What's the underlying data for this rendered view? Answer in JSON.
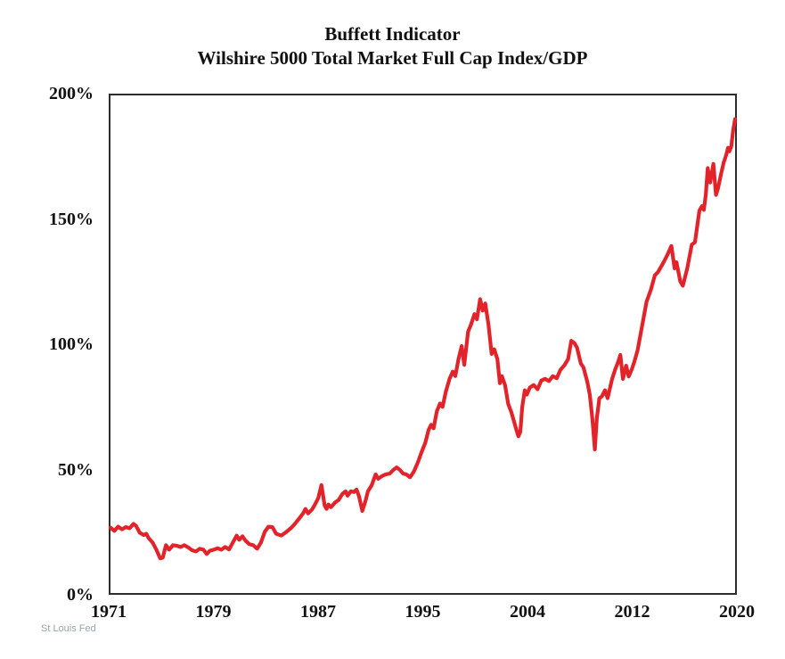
{
  "colors": {
    "line": "#e2232a",
    "axis_border": "#2d2d2d",
    "label_text": "#111111",
    "source_text": "#9aa2aa",
    "background": "#ffffff"
  },
  "chart_data": {
    "type": "line",
    "title": "Buffett Indicator",
    "subtitle": "Wilshire 5000 Total Market Full Cap Index/GDP",
    "source": "St Louis Fed",
    "grid": false,
    "legend": "none",
    "x_axis": {
      "tick_labels": [
        "1971",
        "1979",
        "1987",
        "1995",
        "2004",
        "2012",
        "2020"
      ],
      "range": [
        1971,
        2020
      ],
      "ticks_evenly_spaced": true
    },
    "y_axis": {
      "tick_labels": [
        "0%",
        "50%",
        "100%",
        "150%",
        "200%"
      ],
      "tick_values": [
        0,
        50,
        100,
        150,
        200
      ],
      "range": [
        0,
        200
      ],
      "unit": "percent"
    },
    "series": [
      {
        "name": "Wilshire 5000 Total Market Full Cap Index / GDP (%)",
        "color": "#e2232a",
        "points": [
          [
            1971.0,
            26.3
          ],
          [
            1971.3,
            25.0
          ],
          [
            1971.6,
            26.7
          ],
          [
            1971.9,
            25.6
          ],
          [
            1972.2,
            26.5
          ],
          [
            1972.5,
            26.0
          ],
          [
            1972.8,
            27.8
          ],
          [
            1973.0,
            27.0
          ],
          [
            1973.3,
            24.2
          ],
          [
            1973.6,
            23.3
          ],
          [
            1973.8,
            23.8
          ],
          [
            1974.0,
            22.0
          ],
          [
            1974.3,
            20.3
          ],
          [
            1974.6,
            17.4
          ],
          [
            1974.9,
            13.9
          ],
          [
            1975.1,
            14.2
          ],
          [
            1975.35,
            19.2
          ],
          [
            1975.6,
            17.4
          ],
          [
            1975.9,
            19.2
          ],
          [
            1976.2,
            19.0
          ],
          [
            1976.5,
            18.5
          ],
          [
            1976.8,
            19.2
          ],
          [
            1977.1,
            18.3
          ],
          [
            1977.4,
            17.2
          ],
          [
            1977.7,
            16.7
          ],
          [
            1978.0,
            17.8
          ],
          [
            1978.3,
            17.4
          ],
          [
            1978.55,
            15.7
          ],
          [
            1978.8,
            17.0
          ],
          [
            1979.1,
            17.4
          ],
          [
            1979.4,
            18.0
          ],
          [
            1979.7,
            17.4
          ],
          [
            1980.0,
            18.5
          ],
          [
            1980.3,
            17.5
          ],
          [
            1980.6,
            20.3
          ],
          [
            1980.9,
            23.1
          ],
          [
            1981.1,
            21.4
          ],
          [
            1981.35,
            22.8
          ],
          [
            1981.6,
            21.0
          ],
          [
            1981.9,
            19.6
          ],
          [
            1982.2,
            19.2
          ],
          [
            1982.5,
            17.8
          ],
          [
            1982.8,
            20.3
          ],
          [
            1983.1,
            24.6
          ],
          [
            1983.4,
            26.7
          ],
          [
            1983.7,
            26.5
          ],
          [
            1984.0,
            23.8
          ],
          [
            1984.4,
            23.1
          ],
          [
            1984.8,
            24.6
          ],
          [
            1985.2,
            26.3
          ],
          [
            1985.5,
            28.0
          ],
          [
            1985.8,
            29.9
          ],
          [
            1986.1,
            32.0
          ],
          [
            1986.3,
            33.8
          ],
          [
            1986.5,
            32.0
          ],
          [
            1986.8,
            33.5
          ],
          [
            1987.0,
            35.2
          ],
          [
            1987.3,
            38.1
          ],
          [
            1987.55,
            43.4
          ],
          [
            1987.8,
            35.2
          ],
          [
            1987.95,
            33.8
          ],
          [
            1988.1,
            35.6
          ],
          [
            1988.3,
            34.5
          ],
          [
            1988.6,
            36.3
          ],
          [
            1988.9,
            37.4
          ],
          [
            1989.2,
            39.9
          ],
          [
            1989.45,
            40.9
          ],
          [
            1989.6,
            39.1
          ],
          [
            1989.85,
            40.9
          ],
          [
            1990.1,
            40.6
          ],
          [
            1990.3,
            41.6
          ],
          [
            1990.5,
            38.8
          ],
          [
            1990.75,
            33.0
          ],
          [
            1991.0,
            37.0
          ],
          [
            1991.2,
            40.9
          ],
          [
            1991.5,
            43.4
          ],
          [
            1991.8,
            47.7
          ],
          [
            1992.0,
            45.9
          ],
          [
            1992.3,
            47.0
          ],
          [
            1992.6,
            47.7
          ],
          [
            1992.9,
            48.0
          ],
          [
            1993.2,
            49.5
          ],
          [
            1993.45,
            50.5
          ],
          [
            1993.7,
            49.5
          ],
          [
            1993.95,
            48.0
          ],
          [
            1994.2,
            47.7
          ],
          [
            1994.5,
            46.5
          ],
          [
            1994.8,
            48.8
          ],
          [
            1995.1,
            52.3
          ],
          [
            1995.4,
            56.6
          ],
          [
            1995.7,
            60.5
          ],
          [
            1995.95,
            65.5
          ],
          [
            1996.15,
            67.6
          ],
          [
            1996.35,
            66.2
          ],
          [
            1996.6,
            73.0
          ],
          [
            1996.85,
            76.2
          ],
          [
            1997.05,
            74.8
          ],
          [
            1997.3,
            80.8
          ],
          [
            1997.6,
            86.1
          ],
          [
            1997.85,
            89.0
          ],
          [
            1998.05,
            87.2
          ],
          [
            1998.3,
            94.0
          ],
          [
            1998.55,
            99.3
          ],
          [
            1998.75,
            91.7
          ],
          [
            1999.05,
            105.0
          ],
          [
            1999.3,
            108.2
          ],
          [
            1999.55,
            112.1
          ],
          [
            1999.75,
            110.0
          ],
          [
            2000.0,
            118.1
          ],
          [
            2000.2,
            113.5
          ],
          [
            2000.4,
            116.4
          ],
          [
            2000.65,
            108.0
          ],
          [
            2000.9,
            96.1
          ],
          [
            2001.1,
            98.0
          ],
          [
            2001.35,
            94.0
          ],
          [
            2001.55,
            84.3
          ],
          [
            2001.7,
            87.2
          ],
          [
            2001.95,
            83.6
          ],
          [
            2002.2,
            76.0
          ],
          [
            2002.45,
            72.6
          ],
          [
            2002.65,
            69.0
          ],
          [
            2002.85,
            65.5
          ],
          [
            2003.0,
            63.0
          ],
          [
            2003.15,
            64.8
          ],
          [
            2003.3,
            74.7
          ],
          [
            2003.5,
            81.5
          ],
          [
            2003.65,
            79.7
          ],
          [
            2003.9,
            82.6
          ],
          [
            2004.2,
            83.6
          ],
          [
            2004.5,
            81.9
          ],
          [
            2004.8,
            85.4
          ],
          [
            2005.1,
            86.1
          ],
          [
            2005.4,
            85.2
          ],
          [
            2005.7,
            87.2
          ],
          [
            2006.0,
            86.3
          ],
          [
            2006.3,
            89.7
          ],
          [
            2006.6,
            91.5
          ],
          [
            2006.9,
            94.0
          ],
          [
            2007.15,
            101.4
          ],
          [
            2007.4,
            100.4
          ],
          [
            2007.6,
            98.6
          ],
          [
            2007.9,
            92.2
          ],
          [
            2008.1,
            90.7
          ],
          [
            2008.4,
            85.0
          ],
          [
            2008.6,
            79.7
          ],
          [
            2008.8,
            70.0
          ],
          [
            2009.0,
            57.7
          ],
          [
            2009.15,
            70.1
          ],
          [
            2009.35,
            78.3
          ],
          [
            2009.55,
            79.0
          ],
          [
            2009.8,
            81.5
          ],
          [
            2010.0,
            78.3
          ],
          [
            2010.35,
            86.1
          ],
          [
            2010.6,
            90.0
          ],
          [
            2010.8,
            92.5
          ],
          [
            2011.0,
            95.7
          ],
          [
            2011.2,
            86.0
          ],
          [
            2011.45,
            91.4
          ],
          [
            2011.65,
            87.0
          ],
          [
            2011.9,
            90.0
          ],
          [
            2012.1,
            93.0
          ],
          [
            2012.35,
            97.5
          ],
          [
            2012.8,
            110.0
          ],
          [
            2013.05,
            117.0
          ],
          [
            2013.4,
            122.0
          ],
          [
            2013.7,
            127.7
          ],
          [
            2013.95,
            129.0
          ],
          [
            2014.4,
            133.0
          ],
          [
            2014.7,
            136.0
          ],
          [
            2015.0,
            139.5
          ],
          [
            2015.25,
            130.5
          ],
          [
            2015.4,
            133.0
          ],
          [
            2015.7,
            125.3
          ],
          [
            2015.9,
            123.5
          ],
          [
            2016.25,
            130.5
          ],
          [
            2016.6,
            140.0
          ],
          [
            2016.85,
            141.0
          ],
          [
            2017.2,
            153.7
          ],
          [
            2017.4,
            155.5
          ],
          [
            2017.55,
            154.0
          ],
          [
            2017.7,
            160.0
          ],
          [
            2017.85,
            170.8
          ],
          [
            2018.05,
            165.0
          ],
          [
            2018.3,
            172.5
          ],
          [
            2018.5,
            160.0
          ],
          [
            2018.65,
            162.5
          ],
          [
            2018.9,
            168.5
          ],
          [
            2019.1,
            173.0
          ],
          [
            2019.3,
            176.0
          ],
          [
            2019.45,
            179.0
          ],
          [
            2019.55,
            177.5
          ],
          [
            2019.7,
            179.5
          ],
          [
            2019.85,
            186.0
          ],
          [
            2020.0,
            190.5
          ]
        ]
      }
    ]
  }
}
